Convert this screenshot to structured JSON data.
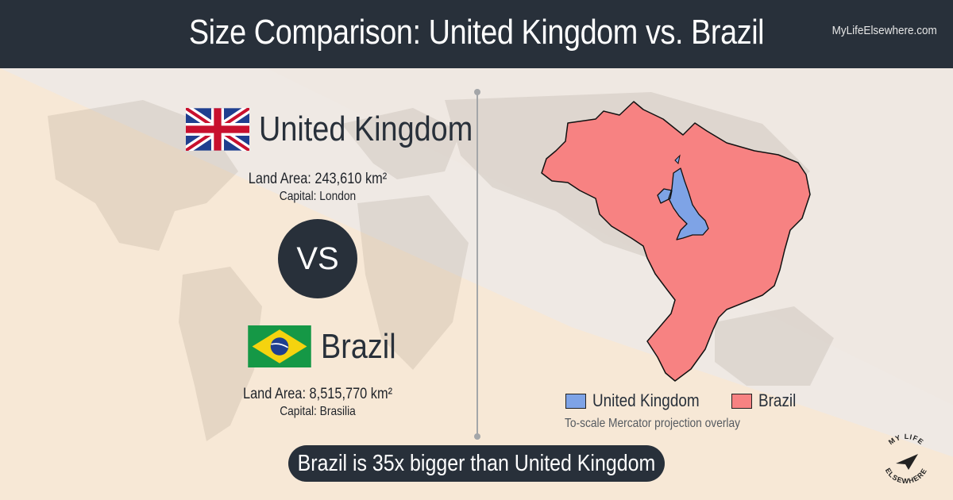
{
  "header": {
    "title": "Size Comparison: United Kingdom vs. Brazil",
    "site": "MyLifeElsewhere.com"
  },
  "country_a": {
    "name": "United Kingdom",
    "land_area": "Land Area: 243,610 km²",
    "capital": "Capital: London",
    "flag_icon": "uk-flag-icon"
  },
  "vs_label": "VS",
  "country_b": {
    "name": "Brazil",
    "land_area": "Land Area: 8,515,770 km²",
    "capital": "Capital: Brasilia",
    "flag_icon": "brazil-flag-icon"
  },
  "legend": {
    "items": [
      {
        "label": "United Kingdom",
        "color": "#7ea3e6"
      },
      {
        "label": "Brazil",
        "color": "#f78282"
      }
    ],
    "caption": "To-scale Mercator projection overlay"
  },
  "summary": "Brazil is 35x bigger than United Kingdom",
  "logo": {
    "text": "MY LIFE ELSEWHERE",
    "icon": "paper-plane-icon"
  },
  "colors": {
    "header_bg": "#28303a",
    "uk_fill": "#7ea3e6",
    "brazil_fill": "#f78282",
    "background_peach": "#fbe7cc"
  }
}
